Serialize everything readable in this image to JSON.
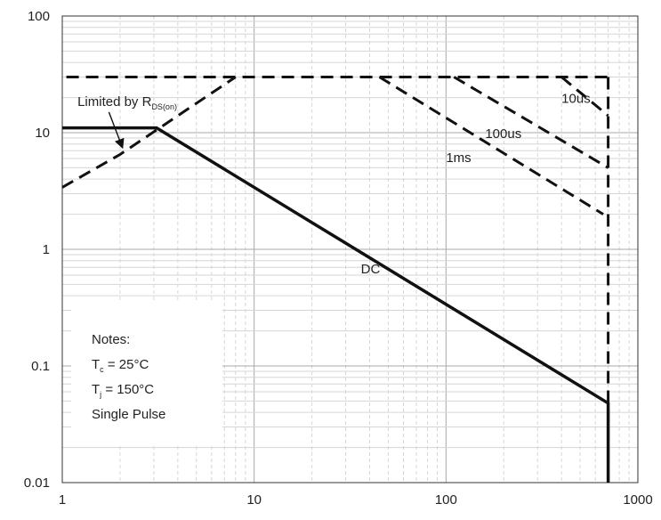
{
  "chart_data": {
    "type": "line",
    "title": "",
    "xlabel": "",
    "ylabel": "",
    "x_scale": "log",
    "y_scale": "log",
    "xlim": [
      1,
      1000
    ],
    "ylim": [
      0.01,
      100
    ],
    "grid": true,
    "x_ticks": [
      {
        "value": 1,
        "label": "1"
      },
      {
        "value": 10,
        "label": "10"
      },
      {
        "value": 100,
        "label": "100"
      },
      {
        "value": 1000,
        "label": "1000"
      }
    ],
    "y_ticks": [
      {
        "value": 0.01,
        "label": "0.01"
      },
      {
        "value": 0.1,
        "label": "0.1"
      },
      {
        "value": 1,
        "label": "1"
      },
      {
        "value": 10,
        "label": "10"
      },
      {
        "value": 100,
        "label": "100"
      }
    ],
    "series": [
      {
        "name": "DC",
        "style": "solid",
        "points": [
          [
            1,
            11
          ],
          [
            3.1,
            11
          ],
          [
            700,
            0.048
          ],
          [
            700,
            0.01
          ]
        ]
      },
      {
        "name": "1ms",
        "style": "dashed",
        "points": [
          [
            45,
            30
          ],
          [
            660,
            2
          ]
        ]
      },
      {
        "name": "100us",
        "style": "dashed",
        "points": [
          [
            110,
            30
          ],
          [
            700,
            5
          ]
        ]
      },
      {
        "name": "10us",
        "style": "dashed",
        "points": [
          [
            400,
            30
          ],
          [
            700,
            14
          ]
        ]
      }
    ],
    "limits": [
      {
        "name": "rds_limit",
        "style": "dashed",
        "points": [
          [
            1,
            3.4
          ],
          [
            2,
            6.5
          ],
          [
            8,
            30
          ]
        ]
      },
      {
        "name": "current_limit",
        "style": "dashed",
        "points": [
          [
            1.05,
            30
          ],
          [
            700,
            30
          ]
        ]
      },
      {
        "name": "voltage_limit",
        "style": "dashed",
        "points": [
          [
            700,
            30
          ],
          [
            700,
            0.01
          ]
        ]
      }
    ],
    "annotations": {
      "limited_by": {
        "text": "Limited by R",
        "subscript": "DS(on)",
        "x": 1.2,
        "y": 17,
        "arrow_to": [
          2.05,
          7.6
        ]
      },
      "label_10us": {
        "text": "10us",
        "x": 400,
        "y": 18
      },
      "label_100us": {
        "text": "100us",
        "x": 160,
        "y": 9
      },
      "label_1ms": {
        "text": "1ms",
        "x": 100,
        "y": 5.6
      },
      "label_dc": {
        "text": "DC",
        "x": 36,
        "y": 0.62
      }
    },
    "notes": {
      "heading": "Notes:",
      "tc_prefix": "T",
      "tc_sub": "c",
      "tc_value": " = 25°C",
      "tj_prefix": "T",
      "tj_sub": "j",
      "tj_value": " = 150°C",
      "pulse": "Single Pulse"
    },
    "colors": {
      "line": "#111111",
      "major_grid": "#a8a8a8",
      "minor_grid": "#d6d6d6",
      "axis": "#333333"
    }
  }
}
